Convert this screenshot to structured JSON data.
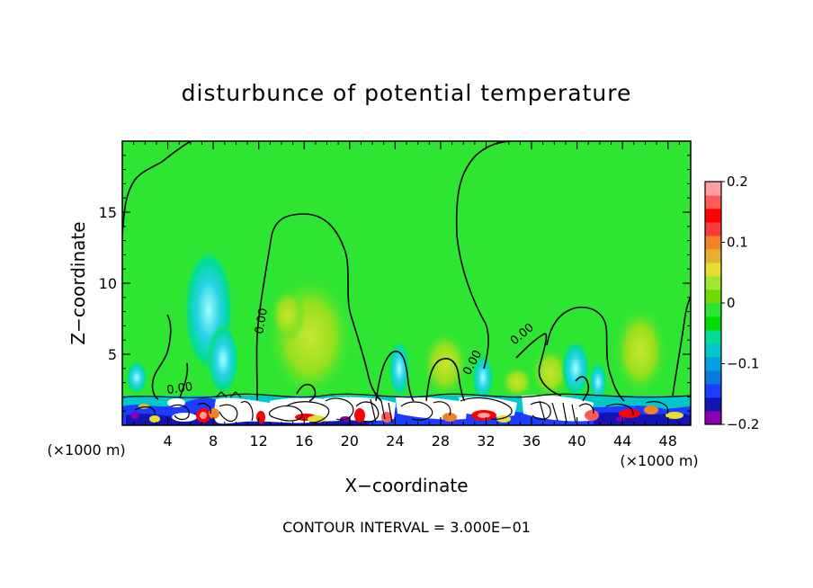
{
  "chart_data": {
    "type": "heatmap",
    "title": "disturbunce of potential temperature",
    "xlabel": "X−coordinate",
    "ylabel": "Z−coordinate",
    "x_unit_label": "(×1000 m)",
    "x_unit_label_right": "(×1000 m)",
    "footer": "CONTOUR INTERVAL = 3.000E−01",
    "xlim": [
      0,
      50
    ],
    "ylim": [
      0,
      20
    ],
    "x_ticks": [
      "4",
      "8",
      "12",
      "16",
      "20",
      "24",
      "28",
      "32",
      "36",
      "40",
      "44",
      "48"
    ],
    "x_tick_values": [
      4,
      8,
      12,
      16,
      20,
      24,
      28,
      32,
      36,
      40,
      44,
      48
    ],
    "y_ticks": [
      "5",
      "10",
      "15"
    ],
    "y_tick_values": [
      5,
      10,
      15
    ],
    "contour_labels": [
      "0.00",
      "0.00",
      "0.00",
      "0.00"
    ],
    "colorbar": {
      "min": -0.2,
      "max": 0.2,
      "tick_labels": [
        "0.2",
        "0.1",
        "0",
        "−0.1",
        "−0.2"
      ],
      "tick_values": [
        0.2,
        0.1,
        0,
        -0.1,
        -0.2
      ],
      "colors": [
        "#8b00b0",
        "#1414b4",
        "#1e3cff",
        "#0a78dc",
        "#00a0e6",
        "#00c8c8",
        "#00dc96",
        "#00dc00",
        "#28e632",
        "#6edc00",
        "#a0e632",
        "#e6dc32",
        "#e6af2d",
        "#f08228",
        "#fa3c3c",
        "#ff0000",
        "#ff5a5a",
        "#ffa0a0"
      ]
    }
  }
}
